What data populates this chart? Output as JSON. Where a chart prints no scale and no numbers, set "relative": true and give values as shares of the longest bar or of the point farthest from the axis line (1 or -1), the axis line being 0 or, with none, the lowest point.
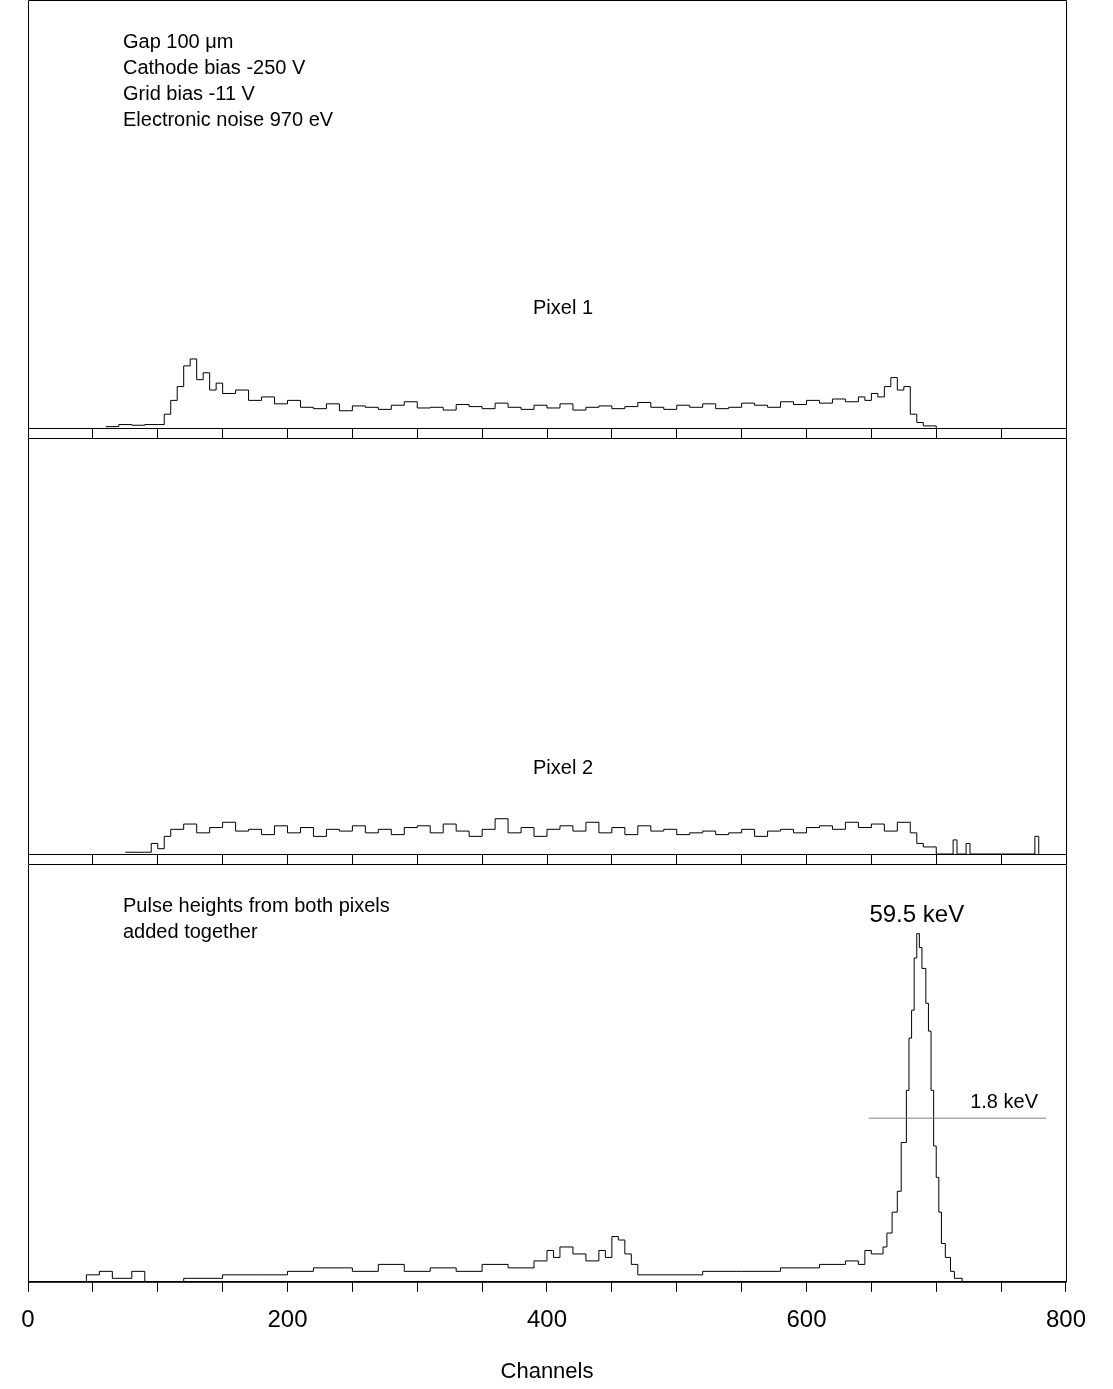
{
  "chart_data": [
    {
      "type": "step",
      "relative": true,
      "grid": false,
      "tick_labels": false,
      "xlim": [
        0,
        800
      ],
      "xticks": [
        {
          "value": 0,
          "label": null
        },
        {
          "value": 50,
          "label": null
        },
        {
          "value": 100,
          "label": null
        },
        {
          "value": 150,
          "label": null
        },
        {
          "value": 200,
          "label": null
        },
        {
          "value": 250,
          "label": null
        },
        {
          "value": 300,
          "label": null
        },
        {
          "value": 350,
          "label": null
        },
        {
          "value": 400,
          "label": null
        },
        {
          "value": 450,
          "label": null
        },
        {
          "value": 500,
          "label": null
        },
        {
          "value": 550,
          "label": null
        },
        {
          "value": 600,
          "label": null
        },
        {
          "value": 650,
          "label": null
        },
        {
          "value": 700,
          "label": null
        },
        {
          "value": 750,
          "label": null
        },
        {
          "value": 800,
          "label": null
        }
      ],
      "annotations": [
        "Gap 100 μm",
        "Cathode bias -250 V",
        "Grid bias -11 V",
        "Electronic noise 970 eV"
      ],
      "x": [
        60,
        70,
        80,
        90,
        100,
        105,
        110,
        115,
        120,
        125,
        130,
        135,
        140,
        145,
        150,
        160,
        170,
        180,
        190,
        200,
        210,
        220,
        230,
        240,
        250,
        260,
        270,
        280,
        290,
        300,
        310,
        320,
        330,
        340,
        350,
        360,
        370,
        380,
        390,
        400,
        410,
        420,
        430,
        440,
        450,
        460,
        470,
        480,
        490,
        500,
        510,
        520,
        530,
        540,
        550,
        560,
        570,
        580,
        590,
        600,
        610,
        620,
        630,
        640,
        645,
        650,
        655,
        660,
        665,
        670,
        675,
        680,
        685,
        690,
        700
      ],
      "series": [
        {
          "name": "Pixel 1",
          "color": "#000000",
          "values": [
            0.02,
            0.05,
            0.04,
            0.05,
            0.05,
            0.2,
            0.4,
            0.6,
            0.9,
            1.0,
            0.7,
            0.8,
            0.55,
            0.65,
            0.5,
            0.55,
            0.4,
            0.45,
            0.35,
            0.4,
            0.3,
            0.28,
            0.35,
            0.25,
            0.32,
            0.3,
            0.27,
            0.33,
            0.38,
            0.29,
            0.3,
            0.26,
            0.34,
            0.31,
            0.28,
            0.36,
            0.3,
            0.27,
            0.33,
            0.29,
            0.35,
            0.26,
            0.3,
            0.32,
            0.28,
            0.31,
            0.37,
            0.3,
            0.27,
            0.33,
            0.3,
            0.35,
            0.28,
            0.3,
            0.36,
            0.33,
            0.3,
            0.38,
            0.34,
            0.4,
            0.36,
            0.42,
            0.38,
            0.45,
            0.4,
            0.5,
            0.45,
            0.6,
            0.73,
            0.55,
            0.6,
            0.2,
            0.08,
            0.03,
            0
          ]
        }
      ]
    },
    {
      "type": "step",
      "relative": true,
      "grid": false,
      "tick_labels": false,
      "xlim": [
        0,
        800
      ],
      "xticks": [
        {
          "value": 0,
          "label": null
        },
        {
          "value": 50,
          "label": null
        },
        {
          "value": 100,
          "label": null
        },
        {
          "value": 150,
          "label": null
        },
        {
          "value": 200,
          "label": null
        },
        {
          "value": 250,
          "label": null
        },
        {
          "value": 300,
          "label": null
        },
        {
          "value": 350,
          "label": null
        },
        {
          "value": 400,
          "label": null
        },
        {
          "value": 450,
          "label": null
        },
        {
          "value": 500,
          "label": null
        },
        {
          "value": 550,
          "label": null
        },
        {
          "value": 600,
          "label": null
        },
        {
          "value": 650,
          "label": null
        },
        {
          "value": 700,
          "label": null
        },
        {
          "value": 750,
          "label": null
        },
        {
          "value": 800,
          "label": null
        }
      ],
      "x": [
        75,
        80,
        90,
        95,
        100,
        105,
        110,
        120,
        130,
        140,
        150,
        160,
        170,
        180,
        190,
        200,
        210,
        220,
        230,
        240,
        250,
        260,
        270,
        280,
        290,
        300,
        310,
        320,
        330,
        340,
        350,
        360,
        370,
        380,
        390,
        400,
        410,
        420,
        430,
        440,
        450,
        460,
        470,
        480,
        490,
        500,
        510,
        520,
        530,
        540,
        550,
        560,
        570,
        580,
        590,
        600,
        610,
        620,
        630,
        640,
        650,
        660,
        670,
        680,
        685,
        690,
        700,
        713,
        716,
        723,
        726,
        776,
        779
      ],
      "series": [
        {
          "name": "Pixel 2",
          "color": "#000000",
          "values": [
            0.05,
            0.05,
            0.05,
            0.3,
            0.15,
            0.5,
            0.7,
            0.85,
            0.6,
            0.75,
            0.9,
            0.65,
            0.7,
            0.55,
            0.8,
            0.6,
            0.75,
            0.5,
            0.7,
            0.65,
            0.8,
            0.6,
            0.7,
            0.55,
            0.75,
            0.8,
            0.6,
            0.85,
            0.65,
            0.5,
            0.7,
            1.0,
            0.6,
            0.75,
            0.5,
            0.7,
            0.8,
            0.65,
            0.9,
            0.6,
            0.75,
            0.55,
            0.8,
            0.65,
            0.7,
            0.55,
            0.6,
            0.65,
            0.55,
            0.6,
            0.7,
            0.5,
            0.65,
            0.7,
            0.6,
            0.75,
            0.8,
            0.7,
            0.9,
            0.75,
            0.85,
            0.65,
            0.9,
            0.6,
            0.3,
            0.2,
            0,
            0.4,
            0,
            0.3,
            0,
            0.5,
            0
          ]
        }
      ]
    },
    {
      "type": "step",
      "relative": true,
      "grid": false,
      "tick_labels": "x",
      "xlim": [
        0,
        800
      ],
      "xlabel": "Channels",
      "xticks": [
        0,
        {
          "value": 50,
          "label": null
        },
        {
          "value": 100,
          "label": null
        },
        {
          "value": 150,
          "label": null
        },
        200,
        {
          "value": 250,
          "label": null
        },
        {
          "value": 300,
          "label": null
        },
        {
          "value": 350,
          "label": null
        },
        400,
        {
          "value": 450,
          "label": null
        },
        {
          "value": 500,
          "label": null
        },
        {
          "value": 550,
          "label": null
        },
        600,
        {
          "value": 650,
          "label": null
        },
        {
          "value": 700,
          "label": null
        },
        {
          "value": 750,
          "label": null
        },
        800
      ],
      "annotations": [
        "Pulse heights from both pixels added together",
        {
          "text": "59.5 keV",
          "x": 685,
          "y": 1
        }
      ],
      "ref_lines": [
        {
          "axis": "y",
          "value": 0.47,
          "label": "1.8 keV",
          "color": "#808080"
        }
      ],
      "x": [
        0,
        45,
        55,
        65,
        80,
        90,
        120,
        150,
        180,
        200,
        220,
        250,
        270,
        290,
        310,
        330,
        350,
        370,
        390,
        400,
        405,
        410,
        420,
        430,
        440,
        445,
        450,
        455,
        460,
        465,
        470,
        490,
        520,
        550,
        580,
        610,
        630,
        640,
        645,
        650,
        655,
        659,
        662,
        666,
        670,
        673,
        677,
        679,
        681,
        683,
        685,
        687,
        689,
        692,
        694,
        696,
        698,
        700,
        702,
        704,
        707,
        711,
        714,
        720,
        780
      ],
      "series": [
        {
          "color": "#000000",
          "values": [
            0,
            0.02,
            0.03,
            0.01,
            0.03,
            0,
            0.01,
            0.02,
            0.02,
            0.03,
            0.04,
            0.03,
            0.05,
            0.03,
            0.04,
            0.03,
            0.05,
            0.04,
            0.06,
            0.09,
            0.07,
            0.1,
            0.08,
            0.06,
            0.09,
            0.07,
            0.13,
            0.12,
            0.08,
            0.05,
            0.02,
            0.02,
            0.03,
            0.03,
            0.04,
            0.05,
            0.06,
            0.05,
            0.09,
            0.08,
            0.08,
            0.1,
            0.14,
            0.2,
            0.26,
            0.4,
            0.55,
            0.7,
            0.78,
            0.93,
            1,
            0.96,
            0.9,
            0.8,
            0.72,
            0.55,
            0.39,
            0.3,
            0.2,
            0.11,
            0.07,
            0.03,
            0.01,
            0,
            0
          ]
        }
      ]
    }
  ]
}
